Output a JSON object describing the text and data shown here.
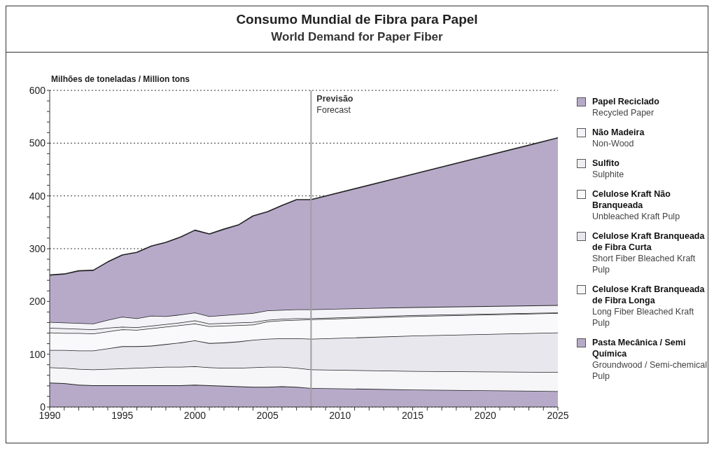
{
  "chart_data": {
    "type": "area",
    "stacked": true,
    "title": "Consumo Mundial de Fibra para Papel",
    "subtitle": "World Demand for Paper Fiber",
    "ylabel": "Milhões de toneladas / Million tons",
    "x": [
      1990,
      1991,
      1992,
      1993,
      1994,
      1995,
      1996,
      1997,
      1998,
      1999,
      2000,
      2001,
      2002,
      2003,
      2004,
      2005,
      2006,
      2007,
      2008,
      2015,
      2025
    ],
    "series": [
      {
        "name": "Pasta Mecânica / Semi Química\nGroundwood / Semi-chemical Pulp",
        "color": "#b7aac9",
        "values": [
          46,
          45,
          42,
          41,
          41,
          41,
          41,
          41,
          41,
          41,
          42,
          41,
          40,
          39,
          38,
          38,
          39,
          38,
          36,
          33,
          30
        ]
      },
      {
        "name": "Celulose Kraft Branqueada de Fibra Longa\nLong Fiber Bleached Kraft Pulp",
        "color": "#f6f6f8",
        "values": [
          29,
          29,
          30,
          30,
          31,
          32,
          33,
          34,
          35,
          35,
          35,
          34,
          34,
          35,
          37,
          38,
          37,
          36,
          35,
          35,
          36
        ]
      },
      {
        "name": "Celulose Kraft Branqueada de Fibra Curta\nShort Fiber Bleached Kraft Pulp",
        "color": "#e9e7ee",
        "values": [
          33,
          34,
          35,
          36,
          39,
          42,
          41,
          41,
          43,
          46,
          49,
          46,
          48,
          50,
          52,
          53,
          54,
          56,
          58,
          67,
          75
        ]
      },
      {
        "name": "Celulose Kraft Não Branqueada\nUnbleached Kraft Pulp",
        "color": "#f9f9fb",
        "values": [
          33,
          32,
          33,
          32,
          32,
          32,
          31,
          33,
          33,
          33,
          32,
          32,
          32,
          31,
          29,
          33,
          34,
          35,
          37,
          37,
          37
        ]
      },
      {
        "name": "Sulfito\nSulphite",
        "color": "#efeef3",
        "values": [
          9,
          9,
          8,
          8,
          7,
          5,
          5,
          5,
          5,
          5,
          6,
          5,
          5,
          5,
          5,
          3,
          3,
          3,
          2,
          2,
          1
        ]
      },
      {
        "name": "Não Madeira\nNon-Wood",
        "color": "#f4f3f7",
        "values": [
          11,
          11,
          11,
          11,
          15,
          19,
          17,
          19,
          15,
          15,
          15,
          14,
          15,
          16,
          17,
          18,
          17,
          17,
          17,
          15,
          14
        ]
      },
      {
        "name": "Papel Reciclado\nRecycled Paper",
        "color": "#b7aac9",
        "values": [
          89,
          92,
          99,
          101,
          110,
          117,
          125,
          132,
          140,
          147,
          156,
          156,
          163,
          169,
          184,
          187,
          198,
          208,
          208,
          252,
          317
        ]
      }
    ],
    "xlim": [
      1990,
      2025
    ],
    "xticks": [
      1990,
      {
        "value": 1991,
        "label": null
      },
      {
        "value": 1992,
        "label": null
      },
      {
        "value": 1993,
        "label": null
      },
      {
        "value": 1994,
        "label": null
      },
      1995,
      {
        "value": 1996,
        "label": null
      },
      {
        "value": 1997,
        "label": null
      },
      {
        "value": 1998,
        "label": null
      },
      {
        "value": 1999,
        "label": null
      },
      2000,
      {
        "value": 2001,
        "label": null
      },
      {
        "value": 2002,
        "label": null
      },
      {
        "value": 2003,
        "label": null
      },
      {
        "value": 2004,
        "label": null
      },
      2005,
      {
        "value": 2006,
        "label": null
      },
      {
        "value": 2007,
        "label": null
      },
      {
        "value": 2008,
        "label": null
      },
      {
        "value": 2009,
        "label": null
      },
      2010,
      {
        "value": 2011,
        "label": null
      },
      {
        "value": 2012,
        "label": null
      },
      {
        "value": 2013,
        "label": null
      },
      {
        "value": 2014,
        "label": null
      },
      2015,
      {
        "value": 2016,
        "label": null
      },
      {
        "value": 2017,
        "label": null
      },
      {
        "value": 2018,
        "label": null
      },
      {
        "value": 2019,
        "label": null
      },
      2020,
      {
        "value": 2021,
        "label": null
      },
      {
        "value": 2022,
        "label": null
      },
      {
        "value": 2023,
        "label": null
      },
      {
        "value": 2024,
        "label": null
      },
      2025
    ],
    "ylim": [
      0,
      600
    ],
    "yticks": [
      0,
      {
        "value": 20,
        "label": null
      },
      {
        "value": 40,
        "label": null
      },
      {
        "value": 60,
        "label": null
      },
      {
        "value": 80,
        "label": null
      },
      100,
      {
        "value": 120,
        "label": null
      },
      {
        "value": 140,
        "label": null
      },
      {
        "value": 160,
        "label": null
      },
      {
        "value": 180,
        "label": null
      },
      200,
      {
        "value": 220,
        "label": null
      },
      {
        "value": 240,
        "label": null
      },
      {
        "value": 260,
        "label": null
      },
      {
        "value": 280,
        "label": null
      },
      300,
      {
        "value": 320,
        "label": null
      },
      {
        "value": 340,
        "label": null
      },
      {
        "value": 360,
        "label": null
      },
      {
        "value": 380,
        "label": null
      },
      400,
      {
        "value": 420,
        "label": null
      },
      {
        "value": 440,
        "label": null
      },
      {
        "value": 460,
        "label": null
      },
      {
        "value": 480,
        "label": null
      },
      500,
      {
        "value": 520,
        "label": null
      },
      {
        "value": 540,
        "label": null
      },
      {
        "value": 560,
        "label": null
      },
      {
        "value": 580,
        "label": null
      },
      600
    ],
    "grid": "y",
    "legend": "right",
    "ref_lines": [
      {
        "axis": "x",
        "value": 2008,
        "label": "Previsão\nForecast",
        "color": "#a0a0a0"
      }
    ]
  }
}
